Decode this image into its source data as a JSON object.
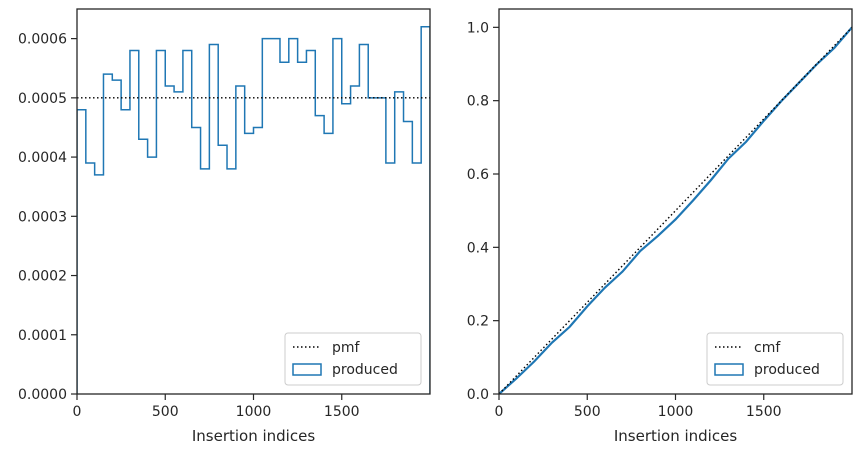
{
  "colors": {
    "series": "#1f77b4",
    "reference": "#000000",
    "axes": "#262626"
  },
  "chart_data": [
    {
      "type": "step",
      "xlabel": "Insertion indices",
      "ylabel": "",
      "xlim": [
        0,
        2000
      ],
      "ylim": [
        0,
        0.00065
      ],
      "xticks": [
        "0",
        "500",
        "1000",
        "1500"
      ],
      "yticks": [
        "0.0000",
        "0.0001",
        "0.0002",
        "0.0003",
        "0.0004",
        "0.0005",
        "0.0006"
      ],
      "grid": false,
      "legend_position": "lower right",
      "series": [
        {
          "name": "pmf",
          "style": "dotted",
          "values": [
            0.0005
          ]
        },
        {
          "name": "produced",
          "style": "step",
          "bin_width": 50,
          "values": [
            0.00048,
            0.00039,
            0.00037,
            0.00054,
            0.00053,
            0.00048,
            0.00058,
            0.00043,
            0.0004,
            0.00058,
            0.00052,
            0.00051,
            0.00058,
            0.00045,
            0.00038,
            0.00059,
            0.00042,
            0.00038,
            0.00052,
            0.00044,
            0.00045,
            0.0006,
            0.0006,
            0.00056,
            0.0006,
            0.00056,
            0.00058,
            0.00047,
            0.00044,
            0.0006,
            0.00049,
            0.00052,
            0.00059,
            0.0005,
            0.0005,
            0.00039,
            0.00051,
            0.00046,
            0.00039,
            0.00062
          ]
        }
      ]
    },
    {
      "type": "line",
      "xlabel": "Insertion indices",
      "ylabel": "",
      "xlim": [
        0,
        2000
      ],
      "ylim": [
        0,
        1.05
      ],
      "xticks": [
        "0",
        "500",
        "1000",
        "1500"
      ],
      "yticks": [
        "0.0",
        "0.2",
        "0.4",
        "0.6",
        "0.8",
        "1.0"
      ],
      "grid": false,
      "legend_position": "lower right",
      "series": [
        {
          "name": "cmf",
          "style": "dotted",
          "x": [
            0,
            2000
          ],
          "values": [
            0,
            1.0
          ]
        },
        {
          "name": "produced",
          "style": "solid",
          "x": [
            0,
            100,
            200,
            300,
            400,
            500,
            600,
            700,
            800,
            900,
            1000,
            1100,
            1200,
            1300,
            1400,
            1500,
            1600,
            1700,
            1800,
            1900,
            2000
          ],
          "values": [
            0,
            0.043,
            0.089,
            0.14,
            0.183,
            0.239,
            0.29,
            0.334,
            0.39,
            0.431,
            0.476,
            0.528,
            0.583,
            0.642,
            0.688,
            0.745,
            0.799,
            0.849,
            0.899,
            0.944,
            1.0
          ]
        }
      ]
    }
  ]
}
